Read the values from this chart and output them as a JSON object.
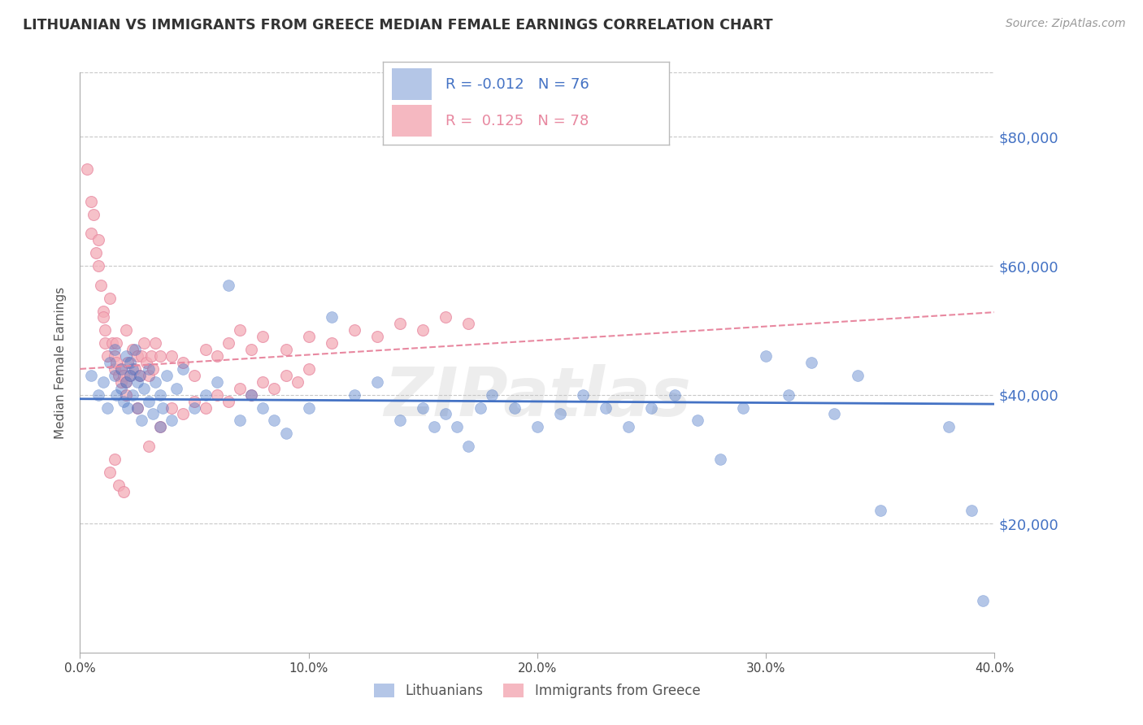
{
  "title": "LITHUANIAN VS IMMIGRANTS FROM GREECE MEDIAN FEMALE EARNINGS CORRELATION CHART",
  "source": "Source: ZipAtlas.com",
  "ylabel": "Median Female Earnings",
  "xlim": [
    0.0,
    0.4
  ],
  "ylim": [
    0,
    90000
  ],
  "yticks": [
    0,
    20000,
    40000,
    60000,
    80000
  ],
  "ytick_labels": [
    "",
    "$20,000",
    "$40,000",
    "$60,000",
    "$80,000"
  ],
  "xticks": [
    0.0,
    0.1,
    0.2,
    0.3,
    0.4
  ],
  "xtick_labels": [
    "0.0%",
    "10.0%",
    "20.0%",
    "30.0%",
    "40.0%"
  ],
  "legend_R1": "-0.012",
  "legend_N1": "76",
  "legend_R2": "0.125",
  "legend_N2": "78",
  "blue_color": "#4472C4",
  "pink_fill": "#F4ACB7",
  "pink_edge": "#E888A0",
  "watermark": "ZIPatlas",
  "blue_scatter_x": [
    0.005,
    0.008,
    0.01,
    0.012,
    0.013,
    0.015,
    0.015,
    0.016,
    0.018,
    0.018,
    0.019,
    0.02,
    0.02,
    0.021,
    0.022,
    0.022,
    0.023,
    0.023,
    0.024,
    0.025,
    0.025,
    0.026,
    0.027,
    0.028,
    0.03,
    0.03,
    0.032,
    0.033,
    0.035,
    0.035,
    0.036,
    0.038,
    0.04,
    0.042,
    0.045,
    0.05,
    0.055,
    0.06,
    0.065,
    0.07,
    0.075,
    0.08,
    0.085,
    0.09,
    0.1,
    0.11,
    0.12,
    0.13,
    0.14,
    0.15,
    0.155,
    0.16,
    0.165,
    0.17,
    0.175,
    0.18,
    0.19,
    0.2,
    0.21,
    0.22,
    0.23,
    0.24,
    0.25,
    0.26,
    0.27,
    0.28,
    0.29,
    0.3,
    0.31,
    0.32,
    0.33,
    0.34,
    0.35,
    0.38,
    0.39,
    0.395
  ],
  "blue_scatter_y": [
    43000,
    40000,
    42000,
    38000,
    45000,
    43000,
    47000,
    40000,
    44000,
    41000,
    39000,
    46000,
    42000,
    38000,
    43000,
    45000,
    40000,
    44000,
    47000,
    42000,
    38000,
    43000,
    36000,
    41000,
    44000,
    39000,
    37000,
    42000,
    35000,
    40000,
    38000,
    43000,
    36000,
    41000,
    44000,
    38000,
    40000,
    42000,
    57000,
    36000,
    40000,
    38000,
    36000,
    34000,
    38000,
    52000,
    40000,
    42000,
    36000,
    38000,
    35000,
    37000,
    35000,
    32000,
    38000,
    40000,
    38000,
    35000,
    37000,
    40000,
    38000,
    35000,
    38000,
    40000,
    36000,
    30000,
    38000,
    46000,
    40000,
    45000,
    37000,
    43000,
    22000,
    35000,
    22000,
    8000
  ],
  "pink_scatter_x": [
    0.003,
    0.005,
    0.005,
    0.006,
    0.007,
    0.008,
    0.008,
    0.009,
    0.01,
    0.01,
    0.011,
    0.011,
    0.012,
    0.013,
    0.014,
    0.015,
    0.015,
    0.016,
    0.016,
    0.017,
    0.018,
    0.018,
    0.019,
    0.02,
    0.02,
    0.021,
    0.022,
    0.023,
    0.024,
    0.025,
    0.026,
    0.027,
    0.028,
    0.029,
    0.03,
    0.031,
    0.032,
    0.033,
    0.035,
    0.04,
    0.045,
    0.05,
    0.055,
    0.06,
    0.065,
    0.07,
    0.075,
    0.08,
    0.09,
    0.1,
    0.11,
    0.12,
    0.13,
    0.14,
    0.15,
    0.16,
    0.17,
    0.02,
    0.025,
    0.03,
    0.035,
    0.04,
    0.045,
    0.05,
    0.055,
    0.06,
    0.065,
    0.07,
    0.075,
    0.08,
    0.085,
    0.09,
    0.095,
    0.1,
    0.013,
    0.015,
    0.017,
    0.019
  ],
  "pink_scatter_y": [
    75000,
    70000,
    65000,
    68000,
    62000,
    60000,
    64000,
    57000,
    53000,
    52000,
    50000,
    48000,
    46000,
    55000,
    48000,
    46000,
    44000,
    48000,
    45000,
    43000,
    42000,
    44000,
    43000,
    50000,
    42000,
    45000,
    43000,
    47000,
    44000,
    46000,
    43000,
    46000,
    48000,
    45000,
    43000,
    46000,
    44000,
    48000,
    46000,
    46000,
    45000,
    43000,
    47000,
    46000,
    48000,
    50000,
    47000,
    49000,
    47000,
    49000,
    48000,
    50000,
    49000,
    51000,
    50000,
    52000,
    51000,
    40000,
    38000,
    32000,
    35000,
    38000,
    37000,
    39000,
    38000,
    40000,
    39000,
    41000,
    40000,
    42000,
    41000,
    43000,
    42000,
    44000,
    28000,
    30000,
    26000,
    25000
  ]
}
